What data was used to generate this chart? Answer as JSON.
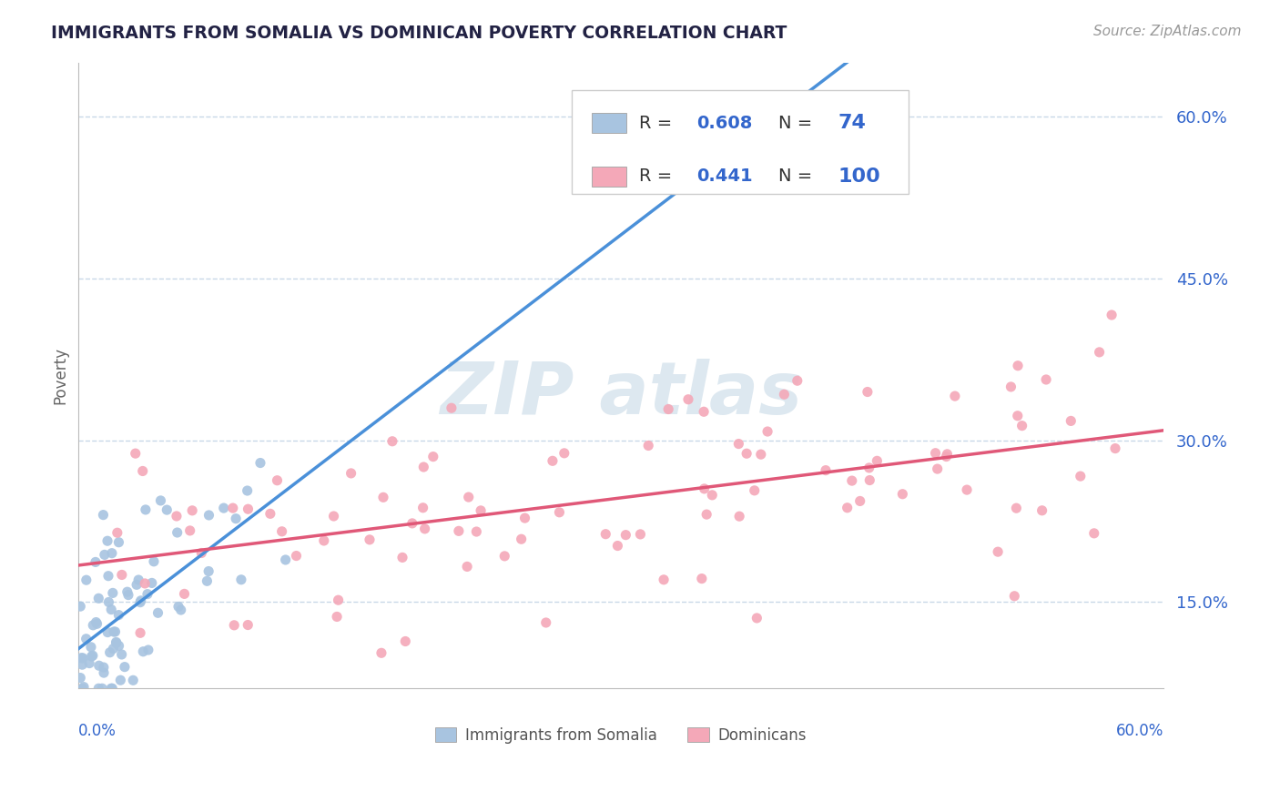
{
  "title": "IMMIGRANTS FROM SOMALIA VS DOMINICAN POVERTY CORRELATION CHART",
  "source": "Source: ZipAtlas.com",
  "ylabel": "Poverty",
  "yticklabels": [
    "15.0%",
    "30.0%",
    "45.0%",
    "60.0%"
  ],
  "ytick_values": [
    0.15,
    0.3,
    0.45,
    0.6
  ],
  "xlim": [
    0.0,
    0.6
  ],
  "ylim": [
    0.07,
    0.65
  ],
  "somalia_R": 0.608,
  "somalia_N": 74,
  "dominican_R": 0.441,
  "dominican_N": 100,
  "somalia_color": "#a8c4e0",
  "dominican_color": "#f4a8b8",
  "somalia_line_color": "#4a90d9",
  "dominican_line_color": "#e05878",
  "legend_somalia_label": "Immigrants from Somalia",
  "legend_dominican_label": "Dominicans",
  "background_color": "#ffffff",
  "grid_color": "#c8d8e8",
  "title_color": "#222244",
  "source_color": "#999999",
  "legend_value_color": "#3366cc",
  "legend_label_color": "#222222",
  "watermark_color": "#dde8f0"
}
